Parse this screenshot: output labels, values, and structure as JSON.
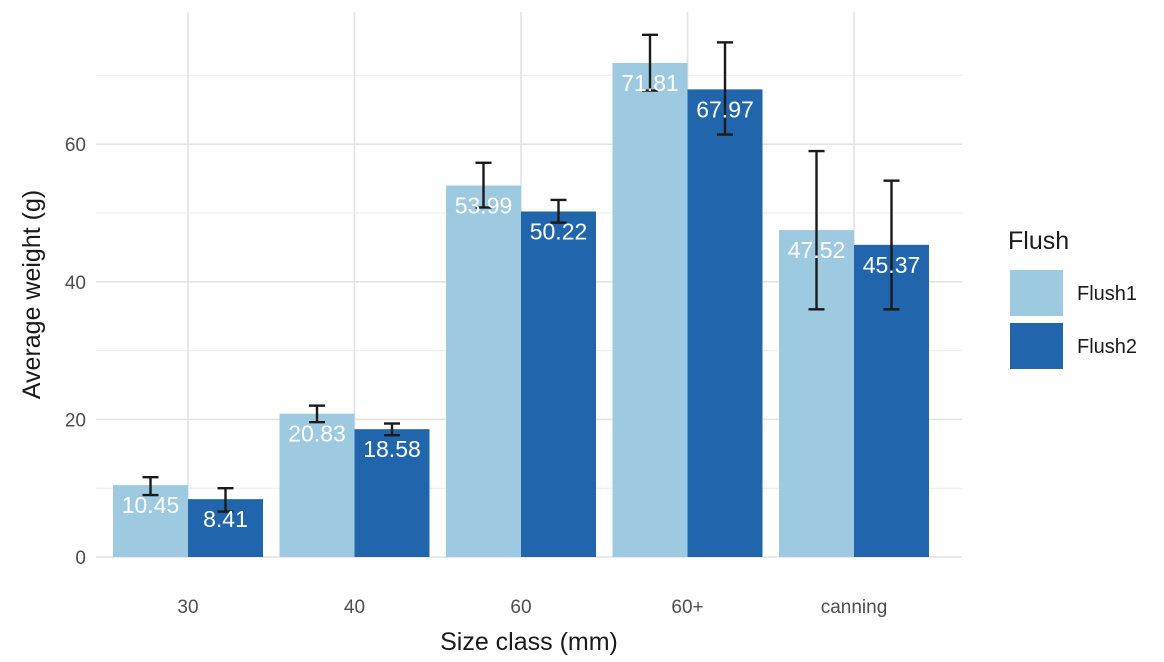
{
  "chart_data": {
    "type": "bar",
    "title": "",
    "xlabel": "Size class (mm)",
    "ylabel": "Average weight (g)",
    "categories": [
      "30",
      "40",
      "60",
      "60+",
      "canning"
    ],
    "ylim": [
      0,
      77
    ],
    "yticks": [
      0,
      20,
      40,
      60
    ],
    "grid": true,
    "legend": {
      "title": "Flush",
      "position": "right"
    },
    "series": [
      {
        "name": "Flush1",
        "color": "#9ecae1",
        "values": [
          10.45,
          20.83,
          53.99,
          71.81,
          47.52
        ],
        "labels": [
          "10.45",
          "20.83",
          "53.99",
          "71.81",
          "47.52"
        ],
        "error_low": [
          9.0,
          19.6,
          50.8,
          67.8,
          36.0
        ],
        "error_high": [
          11.6,
          22.0,
          57.3,
          75.9,
          59.0
        ]
      },
      {
        "name": "Flush2",
        "color": "#2166ac",
        "values": [
          8.41,
          18.58,
          50.22,
          67.97,
          45.37
        ],
        "labels": [
          "8.41",
          "18.58",
          "50.22",
          "67.97",
          "45.37"
        ],
        "error_low": [
          6.6,
          17.7,
          48.6,
          61.4,
          36.0
        ],
        "error_high": [
          10.0,
          19.4,
          51.9,
          74.8,
          54.7
        ]
      }
    ]
  }
}
